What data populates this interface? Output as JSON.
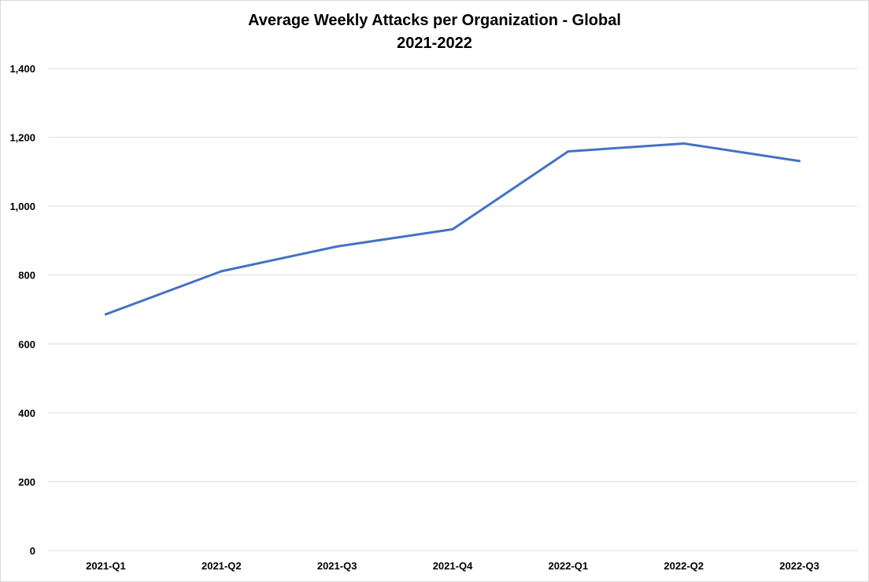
{
  "chart_data": {
    "type": "line",
    "title": "Average Weekly Attacks per Organization - Global",
    "subtitle": "2021-2022",
    "xlabel": "",
    "ylabel": "",
    "categories": [
      "2021-Q1",
      "2021-Q2",
      "2021-Q3",
      "2021-Q4",
      "2022-Q1",
      "2022-Q2",
      "2022-Q3"
    ],
    "series": [
      {
        "values": [
          686,
          811,
          883,
          933,
          1159,
          1182,
          1131
        ],
        "color": "#4472c4"
      }
    ],
    "ylim": [
      0,
      1400
    ],
    "yticks": [
      0,
      200,
      400,
      600,
      800,
      1000,
      1200,
      1400
    ],
    "ytick_labels": [
      "0",
      "200",
      "400",
      "600",
      "800",
      "1,000",
      "1,200",
      "1,400"
    ],
    "grid": true,
    "legend": "none"
  }
}
